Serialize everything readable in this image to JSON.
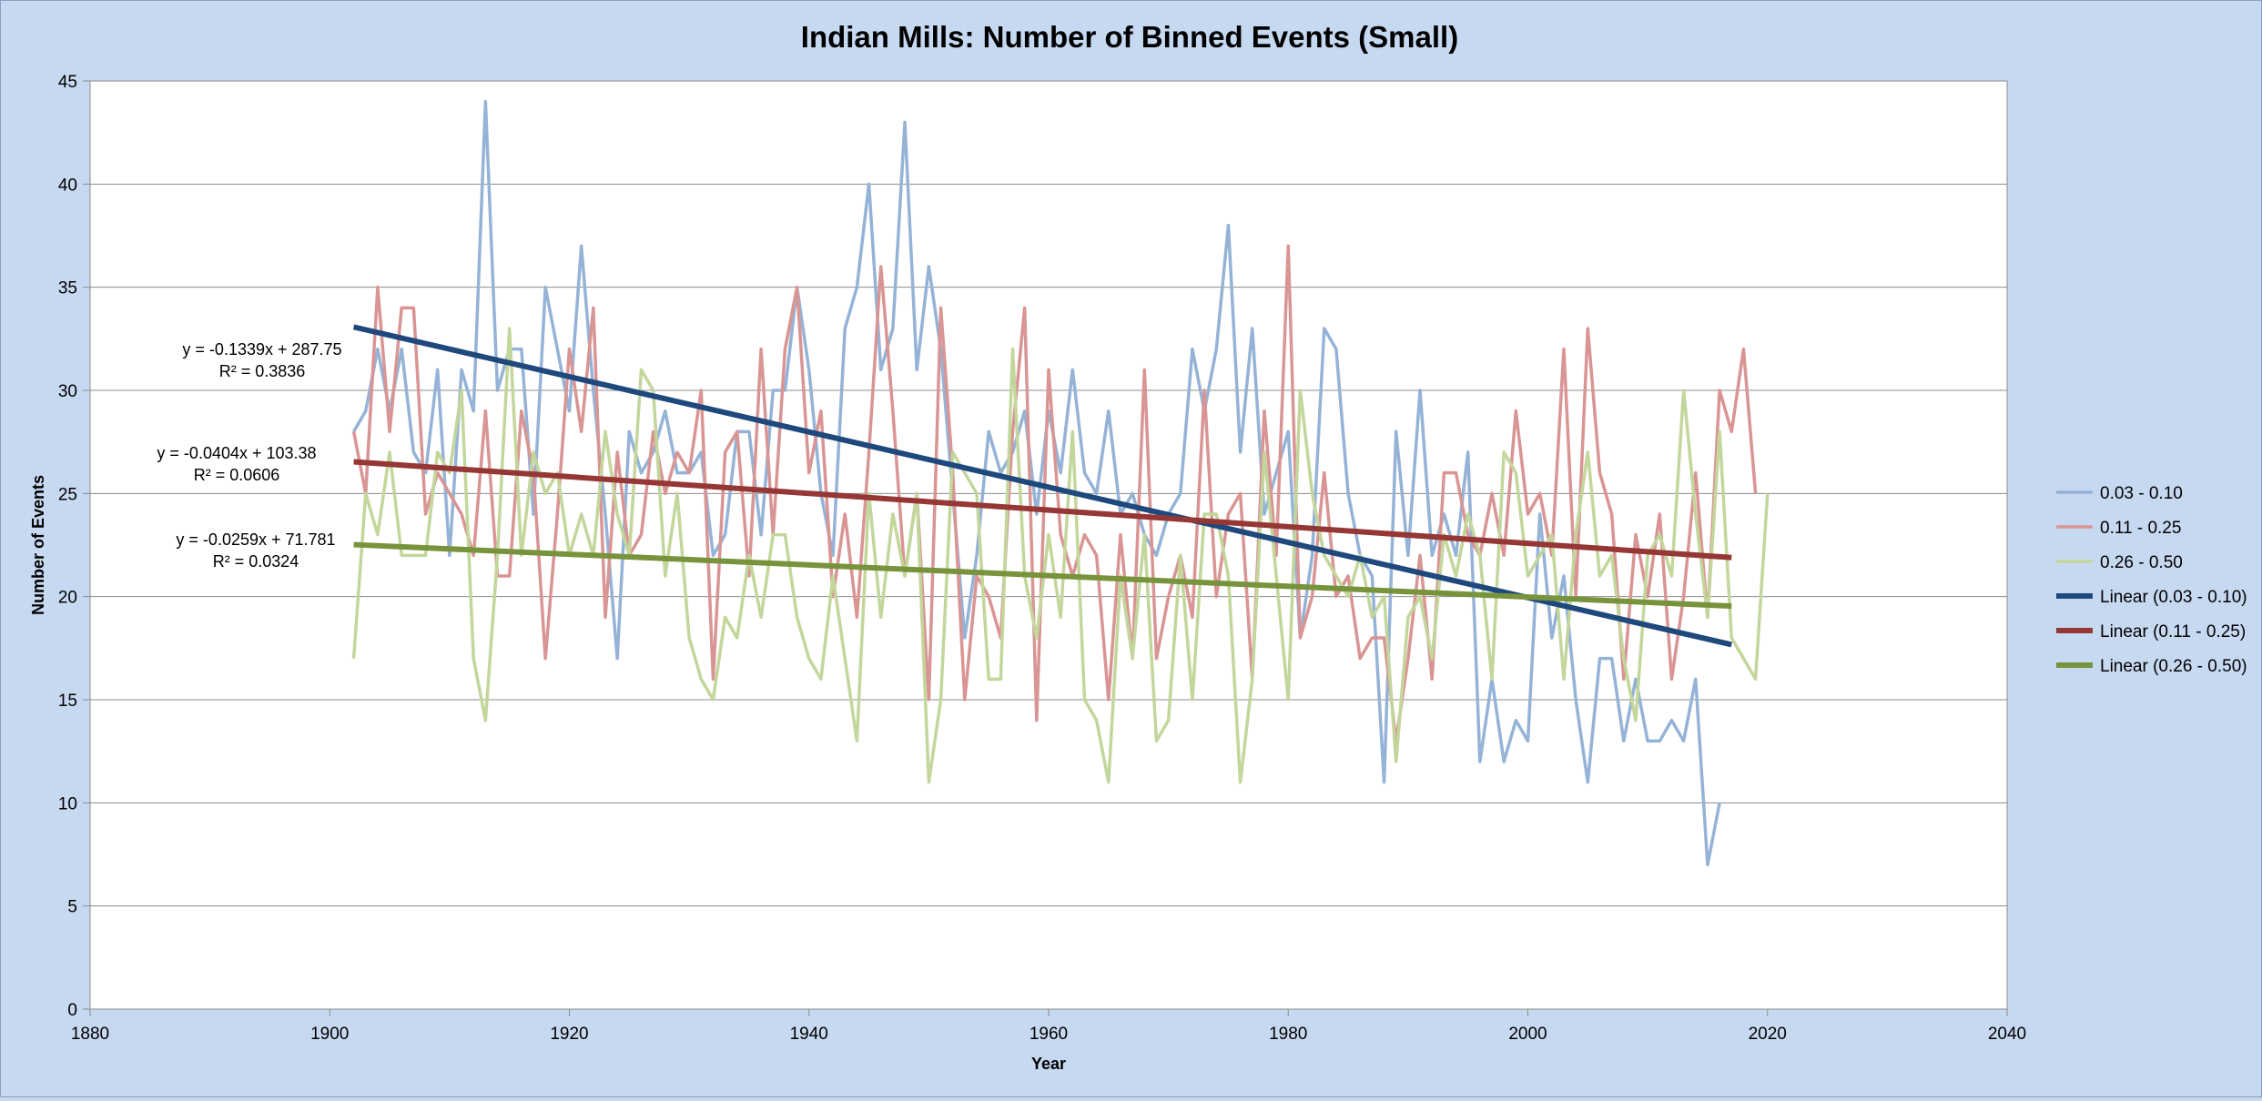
{
  "chart_data": {
    "type": "line",
    "title": "Indian Mills: Number of Binned Events (Small)",
    "xlabel": "Year",
    "ylabel": "Number of Events",
    "xlim": [
      1880,
      2040
    ],
    "ylim": [
      0,
      45
    ],
    "x_ticks": [
      1880,
      1900,
      1920,
      1940,
      1960,
      1980,
      2000,
      2020,
      2040
    ],
    "y_ticks": [
      0,
      5,
      10,
      15,
      20,
      25,
      30,
      35,
      40,
      45
    ],
    "grid": "horizontal",
    "legend_position": "right",
    "x_years_start": 1902,
    "series": [
      {
        "name": "0.03 - 0.10",
        "color": "#95b3d7",
        "values": [
          28,
          29,
          32,
          29,
          32,
          27,
          26,
          31,
          22,
          31,
          29,
          44,
          30,
          32,
          32,
          24,
          35,
          32,
          29,
          37,
          30,
          24,
          17,
          28,
          26,
          27,
          29,
          26,
          26,
          27,
          22,
          23,
          28,
          28,
          23,
          30,
          30,
          35,
          31,
          25,
          22,
          33,
          35,
          40,
          31,
          33,
          43,
          31,
          36,
          32,
          25,
          18,
          22,
          28,
          26,
          27,
          29,
          24,
          29,
          26,
          31,
          26,
          25,
          29,
          24,
          25,
          23,
          22,
          24,
          25,
          32,
          29,
          32,
          38,
          27,
          33,
          24,
          26,
          28,
          18,
          22,
          33,
          32,
          25,
          22,
          21,
          11,
          28,
          22,
          30,
          22,
          24,
          22,
          27,
          12,
          16,
          12,
          14,
          13,
          24,
          18,
          21,
          15,
          11,
          17,
          17,
          13,
          16,
          13,
          13,
          14,
          13,
          16,
          7,
          10
        ]
      },
      {
        "name": "0.11 - 0.25",
        "color": "#d99594",
        "values": [
          28,
          25,
          35,
          28,
          34,
          34,
          24,
          26,
          25,
          24,
          22,
          29,
          21,
          21,
          29,
          26,
          17,
          24,
          32,
          28,
          34,
          19,
          27,
          22,
          23,
          28,
          25,
          27,
          26,
          30,
          16,
          27,
          28,
          21,
          32,
          23,
          32,
          35,
          26,
          29,
          20,
          24,
          19,
          27,
          36,
          29,
          21,
          25,
          15,
          34,
          26,
          15,
          21,
          20,
          18,
          28,
          34,
          14,
          31,
          23,
          21,
          23,
          22,
          15,
          23,
          17,
          31,
          17,
          20,
          22,
          19,
          30,
          20,
          24,
          25,
          16,
          29,
          22,
          37,
          18,
          20,
          26,
          20,
          21,
          17,
          18,
          18,
          13,
          17,
          22,
          16,
          26,
          26,
          23,
          22,
          25,
          22,
          29,
          24,
          25,
          22,
          32,
          20,
          33,
          26,
          24,
          16,
          23,
          20,
          24,
          16,
          20,
          26,
          19,
          30,
          28,
          32,
          25
        ]
      },
      {
        "name": "0.26 - 0.50",
        "color": "#c3d69b",
        "values": [
          17,
          25,
          23,
          27,
          22,
          22,
          22,
          27,
          26,
          30,
          17,
          14,
          22,
          33,
          22,
          27,
          25,
          26,
          22,
          24,
          22,
          28,
          24,
          22,
          31,
          30,
          21,
          25,
          18,
          16,
          15,
          19,
          18,
          22,
          19,
          23,
          23,
          19,
          17,
          16,
          21,
          17,
          13,
          25,
          19,
          24,
          21,
          25,
          11,
          15,
          27,
          26,
          25,
          16,
          16,
          32,
          21,
          18,
          23,
          19,
          28,
          15,
          14,
          11,
          21,
          17,
          23,
          13,
          14,
          22,
          15,
          24,
          24,
          21,
          11,
          16,
          27,
          21,
          15,
          30,
          25,
          22,
          21,
          20,
          22,
          19,
          20,
          12,
          19,
          20,
          17,
          23,
          21,
          24,
          22,
          16,
          27,
          26,
          21,
          22,
          23,
          16,
          23,
          27,
          21,
          22,
          17,
          14,
          22,
          23,
          21,
          30,
          24,
          19,
          28,
          18,
          17,
          16,
          25
        ]
      },
      {
        "name": "Linear (0.03 - 0.10)",
        "color": "#1f497d",
        "type": "trendline",
        "slope": -0.1339,
        "intercept": 287.75,
        "x_range": [
          1902,
          2017
        ]
      },
      {
        "name": "Linear (0.11 - 0.25)",
        "color": "#953735",
        "type": "trendline",
        "slope": -0.0404,
        "intercept": 103.38,
        "x_range": [
          1902,
          2017
        ]
      },
      {
        "name": "Linear (0.26 - 0.50)",
        "color": "#77933c",
        "type": "trendline",
        "slope": -0.0259,
        "intercept": 71.781,
        "x_range": [
          1902,
          2017
        ]
      }
    ],
    "annotations": [
      {
        "series": "Linear (0.03 - 0.10)",
        "equation": "y = -0.1339x + 287.75",
        "r2": "R² = 0.3836"
      },
      {
        "series": "Linear (0.11 - 0.25)",
        "equation": "y = -0.0404x + 103.38",
        "r2": "R² = 0.0606"
      },
      {
        "series": "Linear (0.26 - 0.50)",
        "equation": "y = -0.0259x + 71.781",
        "r2": "R² = 0.0324"
      }
    ]
  }
}
